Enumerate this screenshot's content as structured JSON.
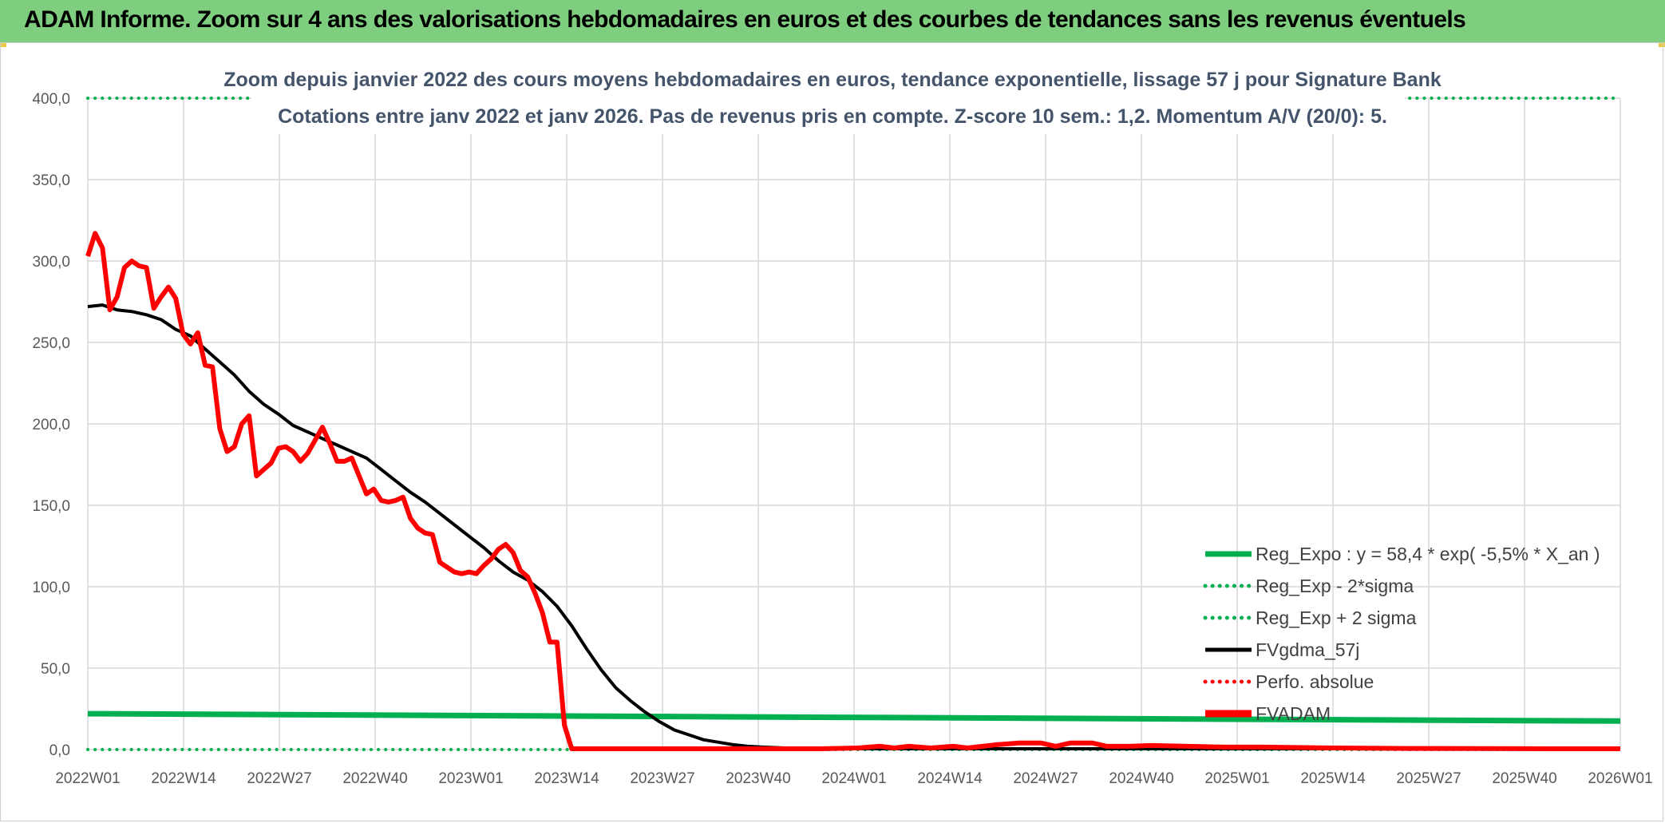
{
  "header": {
    "title": "ADAM Informe. Zoom sur 4 ans des valorisations hebdomadaires en euros et des courbes de tendances sans les revenus éventuels",
    "colors": {
      "header_bg": "#7fcd7f",
      "accent": "#e8c94a"
    }
  },
  "chart_data": {
    "type": "line",
    "title": "Zoom depuis janvier 2022 des cours moyens hebdomadaires en euros, tendance exponentielle, lissage 57 j pour Signature Bank",
    "subtitle": "Cotations entre janv 2022 et janv 2026. Pas de revenus pris en compte. Z-score 10 sem.: 1,2. Momentum A/V (20/0): 5.",
    "xlabel": "",
    "ylabel": "",
    "ylim": [
      0,
      400
    ],
    "yticks": [
      "0,0",
      "50,0",
      "100,0",
      "150,0",
      "200,0",
      "250,0",
      "300,0",
      "350,0",
      "400,0"
    ],
    "xticks": [
      "2022W01",
      "2022W14",
      "2022W27",
      "2022W40",
      "2023W01",
      "2023W14",
      "2023W27",
      "2023W40",
      "2024W01",
      "2024W14",
      "2024W27",
      "2024W40",
      "2025W01",
      "2025W14",
      "2025W27",
      "2025W40",
      "2026W01"
    ],
    "x_range_weeks": [
      0,
      209
    ],
    "grid": true,
    "legend_position": "bottom-right",
    "series": [
      {
        "name": "Reg_Expo : y = 58,4 * exp( -5,5% *  X_an )",
        "color": "#00b050",
        "style": "solid",
        "points": [
          [
            0,
            22
          ],
          [
            209,
            17.5
          ]
        ]
      },
      {
        "name": "Reg_Exp - 2*sigma",
        "color": "#00b050",
        "style": "dotted",
        "points": [
          [
            0,
            0
          ],
          [
            209,
            0
          ]
        ]
      },
      {
        "name": "Reg_Exp + 2 sigma",
        "color": "#00b050",
        "style": "dotted",
        "points": [
          [
            0,
            400
          ],
          [
            209,
            400
          ]
        ]
      },
      {
        "name": "FVgdma_57j",
        "color": "#000000",
        "style": "solid",
        "points": [
          [
            0,
            272
          ],
          [
            2,
            273
          ],
          [
            4,
            270
          ],
          [
            6,
            269
          ],
          [
            8,
            267
          ],
          [
            10,
            264
          ],
          [
            12,
            258
          ],
          [
            14,
            254
          ],
          [
            16,
            246
          ],
          [
            18,
            238
          ],
          [
            20,
            230
          ],
          [
            22,
            220
          ],
          [
            24,
            212
          ],
          [
            26,
            206
          ],
          [
            28,
            199
          ],
          [
            30,
            195
          ],
          [
            32,
            191
          ],
          [
            34,
            187
          ],
          [
            36,
            183
          ],
          [
            38,
            179
          ],
          [
            40,
            172
          ],
          [
            42,
            165
          ],
          [
            44,
            158
          ],
          [
            46,
            152
          ],
          [
            48,
            145
          ],
          [
            50,
            138
          ],
          [
            52,
            131
          ],
          [
            54,
            124
          ],
          [
            56,
            116
          ],
          [
            58,
            109
          ],
          [
            60,
            104
          ],
          [
            62,
            97
          ],
          [
            64,
            88
          ],
          [
            66,
            76
          ],
          [
            68,
            62
          ],
          [
            70,
            49
          ],
          [
            72,
            38
          ],
          [
            74,
            30
          ],
          [
            76,
            23
          ],
          [
            78,
            17
          ],
          [
            80,
            12
          ],
          [
            82,
            9
          ],
          [
            84,
            6
          ],
          [
            86,
            4.5
          ],
          [
            88,
            3
          ],
          [
            90,
            2
          ],
          [
            92,
            1.5
          ],
          [
            95,
            1
          ],
          [
            100,
            0.6
          ],
          [
            105,
            0.5
          ],
          [
            110,
            0.5
          ],
          [
            140,
            0.5
          ],
          [
            209,
            0.5
          ]
        ]
      },
      {
        "name": "Perfo. absolue",
        "color": "#ff0000",
        "style": "dotted",
        "points": []
      },
      {
        "name": "FVADAM",
        "color": "#ff0000",
        "style": "solid",
        "points": [
          [
            0,
            303
          ],
          [
            1,
            317
          ],
          [
            2,
            308
          ],
          [
            3,
            270
          ],
          [
            4,
            278
          ],
          [
            5,
            296
          ],
          [
            6,
            300
          ],
          [
            7,
            297
          ],
          [
            8,
            296
          ],
          [
            9,
            271
          ],
          [
            10,
            278
          ],
          [
            11,
            284
          ],
          [
            12,
            277
          ],
          [
            13,
            255
          ],
          [
            14,
            249
          ],
          [
            15,
            256
          ],
          [
            16,
            236
          ],
          [
            17,
            235
          ],
          [
            18,
            197
          ],
          [
            19,
            183
          ],
          [
            20,
            186
          ],
          [
            21,
            200
          ],
          [
            22,
            205
          ],
          [
            23,
            168
          ],
          [
            24,
            172
          ],
          [
            25,
            176
          ],
          [
            26,
            185
          ],
          [
            27,
            186
          ],
          [
            28,
            183
          ],
          [
            29,
            177
          ],
          [
            30,
            182
          ],
          [
            31,
            190
          ],
          [
            32,
            198
          ],
          [
            33,
            188
          ],
          [
            34,
            177
          ],
          [
            35,
            177
          ],
          [
            36,
            179
          ],
          [
            37,
            168
          ],
          [
            38,
            157
          ],
          [
            39,
            160
          ],
          [
            40,
            153
          ],
          [
            41,
            152
          ],
          [
            42,
            153
          ],
          [
            43,
            155
          ],
          [
            44,
            142
          ],
          [
            45,
            136
          ],
          [
            46,
            133
          ],
          [
            47,
            132
          ],
          [
            48,
            115
          ],
          [
            49,
            112
          ],
          [
            50,
            109
          ],
          [
            51,
            108
          ],
          [
            52,
            109
          ],
          [
            53,
            108
          ],
          [
            54,
            113
          ],
          [
            55,
            117
          ],
          [
            56,
            123
          ],
          [
            57,
            126
          ],
          [
            58,
            121
          ],
          [
            59,
            110
          ],
          [
            60,
            106
          ],
          [
            61,
            96
          ],
          [
            62,
            84
          ],
          [
            63,
            66
          ],
          [
            64,
            66
          ],
          [
            65,
            15
          ],
          [
            66,
            0.5
          ],
          [
            70,
            0.5
          ],
          [
            80,
            0.5
          ],
          [
            90,
            0.5
          ],
          [
            95,
            0.5
          ],
          [
            100,
            0.5
          ],
          [
            105,
            1
          ],
          [
            108,
            2
          ],
          [
            110,
            1
          ],
          [
            112,
            2
          ],
          [
            115,
            1
          ],
          [
            118,
            2
          ],
          [
            120,
            1
          ],
          [
            124,
            3
          ],
          [
            127,
            4
          ],
          [
            130,
            4
          ],
          [
            132,
            2
          ],
          [
            134,
            4
          ],
          [
            137,
            4
          ],
          [
            139,
            2
          ],
          [
            142,
            2
          ],
          [
            145,
            2.5
          ],
          [
            150,
            2
          ],
          [
            155,
            1.5
          ],
          [
            160,
            1.5
          ],
          [
            170,
            1
          ],
          [
            180,
            0.7
          ],
          [
            190,
            0.6
          ],
          [
            200,
            0.5
          ],
          [
            209,
            0.5
          ]
        ]
      }
    ]
  }
}
